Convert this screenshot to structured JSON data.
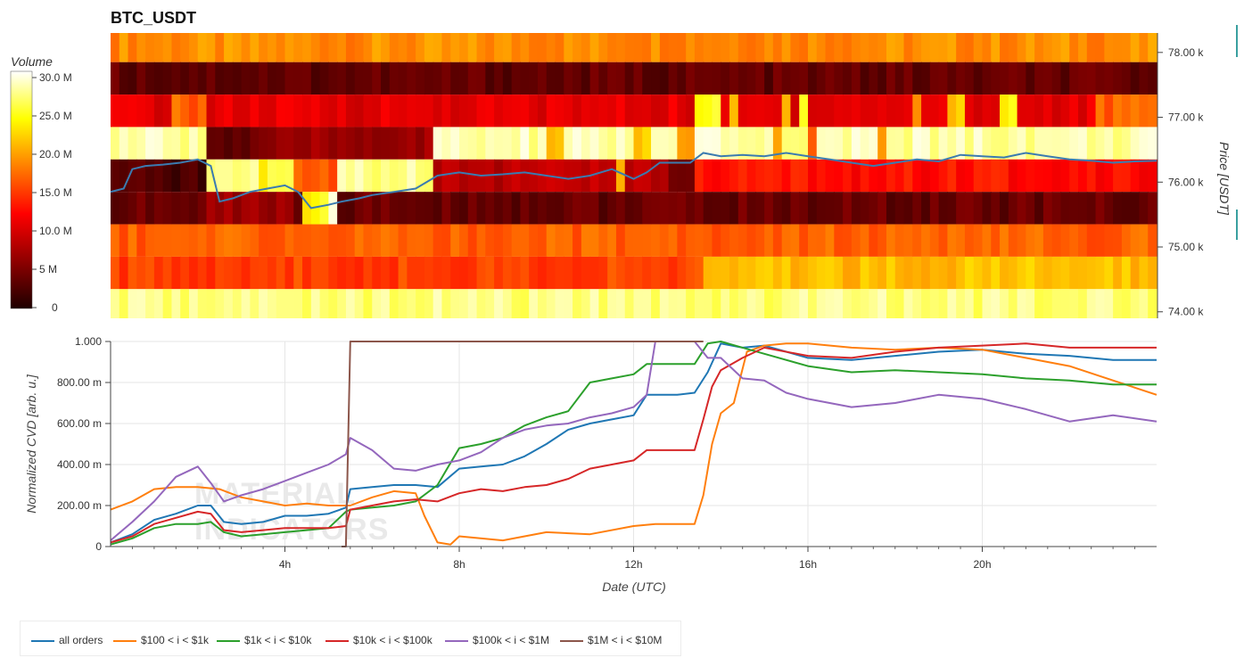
{
  "chart_data": [
    {
      "type": "heatmap",
      "title": "BTC_USDT",
      "colorbar": {
        "label": "Volume",
        "ticks": [
          "0",
          "5 M",
          "10.0 M",
          "15.0 M",
          "20.0 M",
          "25.0 M",
          "30.0 M"
        ],
        "range": [
          0,
          30000000
        ],
        "colormap": "hot"
      },
      "y_right": {
        "label": "Price [USDT]",
        "ticks": [
          "74.00 k",
          "75.00 k",
          "76.00 k",
          "77.00 k",
          "78.00 k"
        ],
        "range": [
          73900,
          78300
        ]
      },
      "x_range_hours": [
        0,
        24
      ],
      "price_bands": [
        {
          "low": 77850,
          "high": 78300,
          "level": 0.62,
          "blocks": []
        },
        {
          "low": 77350,
          "high": 77850,
          "level": 0.12,
          "blocks": []
        },
        {
          "low": 76850,
          "high": 77350,
          "level": 0.35,
          "blocks": [
            [
              13.5,
              14.0,
              0.8
            ],
            [
              14.2,
              14.4,
              0.68
            ],
            [
              15.5,
              15.7,
              0.72
            ],
            [
              15.9,
              16.1,
              0.82
            ],
            [
              18.5,
              18.7,
              0.65
            ],
            [
              19.3,
              19.7,
              0.72
            ],
            [
              20.5,
              20.9,
              0.8
            ],
            [
              22.6,
              24,
              0.55
            ],
            [
              1.5,
              2.2,
              0.55
            ]
          ]
        },
        {
          "low": 76350,
          "high": 76850,
          "level": 0.93,
          "blocks": [
            [
              2.3,
              3.4,
              0.12
            ],
            [
              3.4,
              4.4,
              0.18
            ],
            [
              4.4,
              7.5,
              0.22
            ],
            [
              10.0,
              10.4,
              0.7
            ],
            [
              12.0,
              12.4,
              0.72
            ],
            [
              13.0,
              13.4,
              0.62
            ],
            [
              15.2,
              15.4,
              0.62
            ],
            [
              16.0,
              16.2,
              0.5
            ],
            [
              17.6,
              17.8,
              0.65
            ]
          ]
        },
        {
          "low": 75850,
          "high": 76350,
          "level": 0.3,
          "blocks": [
            [
              0,
              2.3,
              0.08
            ],
            [
              2.3,
              4.4,
              0.9
            ],
            [
              3.4,
              3.7,
              0.72
            ],
            [
              4.3,
              5.2,
              0.55
            ],
            [
              5.2,
              7.5,
              0.92
            ],
            [
              7.5,
              12.8,
              0.28
            ],
            [
              11.6,
              11.8,
              0.7
            ],
            [
              12.8,
              13.5,
              0.1
            ],
            [
              13.5,
              24,
              0.42
            ]
          ]
        },
        {
          "low": 75350,
          "high": 75850,
          "level": 0.13,
          "blocks": [
            [
              4.5,
              5.0,
              0.8
            ],
            [
              5.1,
              5.3,
              1.0
            ],
            [
              2.3,
              4.3,
              0.22
            ]
          ]
        },
        {
          "low": 74850,
          "high": 75350,
          "level": 0.55,
          "blocks": []
        },
        {
          "low": 74350,
          "high": 74850,
          "level": 0.5,
          "blocks": [
            [
              13.7,
              24,
              0.7
            ]
          ]
        },
        {
          "low": 73900,
          "high": 74350,
          "level": 0.88,
          "blocks": [
            [
              0,
              24,
              0.9
            ]
          ]
        }
      ],
      "price_line": {
        "name": "price",
        "color": "#3b7bb0",
        "x": [
          0,
          0.3,
          0.5,
          0.8,
          1.2,
          1.6,
          2.0,
          2.3,
          2.5,
          2.8,
          3.2,
          3.6,
          4.0,
          4.3,
          4.6,
          5.0,
          5.3,
          5.7,
          6.0,
          6.5,
          7.0,
          7.5,
          8.0,
          8.5,
          9.0,
          9.5,
          10.0,
          10.5,
          11.0,
          11.5,
          12.0,
          12.3,
          12.6,
          13.0,
          13.3,
          13.6,
          14.0,
          14.5,
          15.0,
          15.5,
          16.0,
          16.5,
          17.0,
          17.5,
          18.0,
          18.5,
          19.0,
          19.5,
          20.0,
          20.5,
          21.0,
          21.5,
          22.0,
          22.5,
          23.0,
          23.5,
          24.0
        ],
        "y": [
          75850,
          75900,
          76200,
          76250,
          76270,
          76300,
          76350,
          76250,
          75700,
          75750,
          75850,
          75900,
          75950,
          75850,
          75600,
          75650,
          75700,
          75750,
          75800,
          75850,
          75900,
          76100,
          76150,
          76100,
          76120,
          76150,
          76100,
          76050,
          76100,
          76200,
          76050,
          76150,
          76300,
          76300,
          76300,
          76450,
          76400,
          76420,
          76400,
          76450,
          76400,
          76350,
          76300,
          76250,
          76300,
          76350,
          76320,
          76420,
          76400,
          76380,
          76450,
          76400,
          76350,
          76330,
          76300,
          76320,
          76330
        ]
      }
    },
    {
      "type": "line",
      "xlabel": "Date (UTC)",
      "ylabel": "Normalized CVD [arb. u.]",
      "x_ticks": [
        "4h",
        "8h",
        "12h",
        "16h",
        "20h"
      ],
      "x_range_hours": [
        0,
        24
      ],
      "y_ticks": [
        "0",
        "200.00 m",
        "400.00 m",
        "600.00 m",
        "800.00 m",
        "1.000"
      ],
      "ylim": [
        0,
        1
      ],
      "grid": true,
      "legend_position": "bottom",
      "watermark": "MATERIAL INDICATORS",
      "series": [
        {
          "name": "all orders",
          "color": "#1f77b4",
          "x": [
            0,
            0.5,
            1,
            1.5,
            2,
            2.3,
            2.6,
            3,
            3.5,
            4,
            4.5,
            5,
            5.4,
            5.5,
            6,
            6.5,
            7,
            7.5,
            8,
            8.5,
            9,
            9.5,
            10,
            10.5,
            11,
            11.5,
            12,
            12.3,
            12.6,
            13,
            13.4,
            13.7,
            14,
            14.5,
            15,
            15.5,
            16,
            17,
            18,
            19,
            20,
            21,
            22,
            23,
            24
          ],
          "y": [
            0.02,
            0.06,
            0.13,
            0.16,
            0.2,
            0.2,
            0.12,
            0.11,
            0.12,
            0.15,
            0.15,
            0.16,
            0.19,
            0.28,
            0.29,
            0.3,
            0.3,
            0.29,
            0.38,
            0.39,
            0.4,
            0.44,
            0.5,
            0.57,
            0.6,
            0.62,
            0.64,
            0.74,
            0.74,
            0.74,
            0.75,
            0.85,
            0.99,
            0.97,
            0.98,
            0.95,
            0.92,
            0.91,
            0.93,
            0.95,
            0.96,
            0.94,
            0.93,
            0.91,
            0.91
          ]
        },
        {
          "name": "$100 < i < $1k",
          "color": "#ff7f0e",
          "x": [
            0,
            0.5,
            1,
            1.5,
            2,
            2.5,
            3,
            3.5,
            4,
            4.5,
            5,
            5.5,
            6,
            6.5,
            7,
            7.2,
            7.5,
            7.8,
            8,
            9,
            10,
            11,
            12,
            12.5,
            13,
            13.4,
            13.6,
            13.8,
            14,
            14.3,
            14.6,
            15,
            15.5,
            16,
            17,
            18,
            19,
            20,
            21,
            22,
            23,
            24
          ],
          "y": [
            0.18,
            0.22,
            0.28,
            0.29,
            0.29,
            0.28,
            0.24,
            0.22,
            0.2,
            0.21,
            0.2,
            0.2,
            0.24,
            0.27,
            0.26,
            0.15,
            0.02,
            0.01,
            0.05,
            0.03,
            0.07,
            0.06,
            0.1,
            0.11,
            0.11,
            0.11,
            0.25,
            0.5,
            0.65,
            0.7,
            0.95,
            0.98,
            0.99,
            0.99,
            0.97,
            0.96,
            0.97,
            0.96,
            0.92,
            0.88,
            0.81,
            0.74
          ]
        },
        {
          "name": "$1k < i < $10k",
          "color": "#2ca02c",
          "x": [
            0,
            0.5,
            1,
            1.5,
            2,
            2.3,
            2.6,
            3,
            3.5,
            4,
            4.5,
            5,
            5.4,
            5.5,
            6,
            6.5,
            7,
            7.5,
            8,
            8.5,
            9,
            9.5,
            10,
            10.5,
            11,
            11.5,
            12,
            12.3,
            12.6,
            13,
            13.4,
            13.7,
            14,
            14.5,
            15,
            16,
            17,
            18,
            19,
            20,
            21,
            22,
            23,
            24
          ],
          "y": [
            0.01,
            0.04,
            0.09,
            0.11,
            0.11,
            0.12,
            0.07,
            0.05,
            0.06,
            0.07,
            0.08,
            0.09,
            0.17,
            0.18,
            0.19,
            0.2,
            0.22,
            0.3,
            0.48,
            0.5,
            0.53,
            0.59,
            0.63,
            0.66,
            0.8,
            0.82,
            0.84,
            0.89,
            0.89,
            0.89,
            0.89,
            0.99,
            1.0,
            0.97,
            0.94,
            0.88,
            0.85,
            0.86,
            0.85,
            0.84,
            0.82,
            0.81,
            0.79,
            0.79
          ]
        },
        {
          "name": "$10k < i < $100k",
          "color": "#d62728",
          "x": [
            0,
            0.5,
            1,
            1.5,
            2,
            2.3,
            2.6,
            3,
            3.5,
            4,
            4.5,
            5,
            5.4,
            5.5,
            6,
            6.5,
            7,
            7.5,
            8,
            8.5,
            9,
            9.5,
            10,
            10.5,
            11,
            11.5,
            12,
            12.3,
            12.6,
            13,
            13.4,
            13.6,
            13.8,
            14,
            14.5,
            15,
            16,
            17,
            18,
            19,
            20,
            21,
            22,
            23,
            24
          ],
          "y": [
            0.02,
            0.05,
            0.11,
            0.14,
            0.17,
            0.16,
            0.08,
            0.07,
            0.08,
            0.09,
            0.09,
            0.09,
            0.1,
            0.18,
            0.2,
            0.22,
            0.23,
            0.22,
            0.26,
            0.28,
            0.27,
            0.29,
            0.3,
            0.33,
            0.38,
            0.4,
            0.42,
            0.47,
            0.47,
            0.47,
            0.47,
            0.62,
            0.78,
            0.86,
            0.92,
            0.97,
            0.93,
            0.92,
            0.95,
            0.97,
            0.98,
            0.99,
            0.97,
            0.97,
            0.97
          ]
        },
        {
          "name": "$100k < i < $1M",
          "color": "#9467bd",
          "x": [
            0,
            0.5,
            1,
            1.5,
            2,
            2.3,
            2.6,
            3,
            3.5,
            4,
            4.5,
            5,
            5.4,
            5.5,
            6,
            6.5,
            7,
            7.5,
            8,
            8.5,
            9,
            9.5,
            10,
            10.5,
            11,
            11.5,
            12,
            12.3,
            12.5,
            13,
            13.4,
            13.7,
            14,
            14.5,
            15,
            15.5,
            16,
            17,
            18,
            19,
            20,
            21,
            22,
            23,
            24
          ],
          "y": [
            0.03,
            0.12,
            0.22,
            0.34,
            0.39,
            0.31,
            0.22,
            0.25,
            0.28,
            0.32,
            0.36,
            0.4,
            0.45,
            0.53,
            0.47,
            0.38,
            0.37,
            0.4,
            0.42,
            0.46,
            0.53,
            0.57,
            0.59,
            0.6,
            0.63,
            0.65,
            0.68,
            0.74,
            1.0,
            1.0,
            1.0,
            0.92,
            0.92,
            0.82,
            0.81,
            0.75,
            0.72,
            0.68,
            0.7,
            0.74,
            0.72,
            0.67,
            0.61,
            0.64,
            0.61
          ]
        },
        {
          "name": "$1M < i < $10M",
          "color": "#8c564b",
          "x": [
            5.3,
            5.4,
            5.5,
            8,
            12,
            13.6
          ],
          "y": [
            0.0,
            0.0,
            1.0,
            1.0,
            1.0,
            1.0
          ]
        }
      ]
    }
  ]
}
